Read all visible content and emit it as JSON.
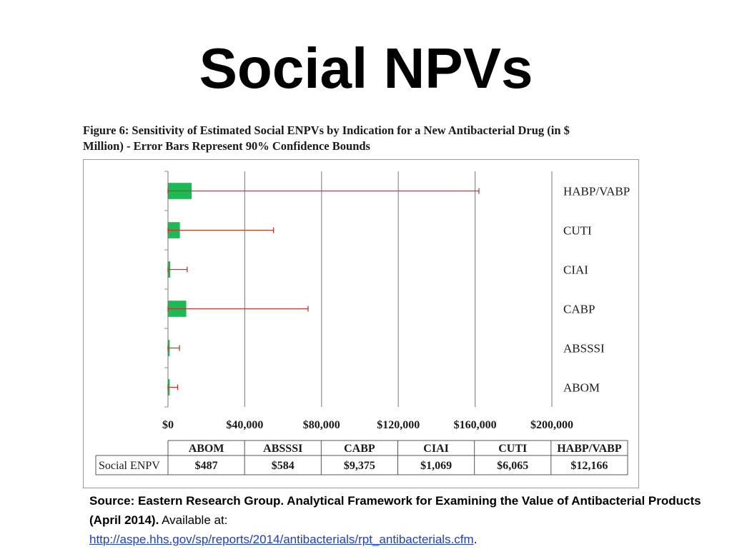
{
  "slide": {
    "title": "Social NPVs"
  },
  "figure": {
    "caption_line1": "Figure 6: Sensitivity of Estimated Social ENPVs by Indication for a New Antibacterial Drug (in $",
    "caption_line2": "Million) - Error Bars Represent 90% Confidence Bounds"
  },
  "source": {
    "bold_text": "Source: Eastern Research Group. Analytical Framework for Examining the Value of Antibacterial Products (April 2014).",
    "plain_text": " Available at:",
    "link_text": "http://aspe.hhs.gov/sp/reports/2014/antibacterials/rpt_antibacterials.cfm",
    "trailing": "."
  },
  "colors": {
    "bar": "#1db954",
    "bar_edge": "#159944",
    "error_bar": "#c0392b",
    "gridline": "#8c8c8c"
  },
  "chart_data": {
    "type": "bar",
    "orientation": "horizontal",
    "categories": [
      "HABP/VABP",
      "CUTI",
      "CIAI",
      "CABP",
      "ABSSSI",
      "ABOM"
    ],
    "values": [
      12166,
      6065,
      1069,
      9375,
      584,
      487
    ],
    "error_upper": [
      162000,
      55000,
      10000,
      73000,
      6000,
      5000
    ],
    "error_lower": [
      0,
      0,
      0,
      0,
      0,
      0
    ],
    "xlim": [
      0,
      200000
    ],
    "x_ticks": [
      "$0",
      "$40,000",
      "$80,000",
      "$120,000",
      "$160,000",
      "$200,000"
    ],
    "x_tick_values": [
      0,
      40000,
      80000,
      120000,
      160000,
      200000
    ],
    "grid": true,
    "table": {
      "row_label": "Social ENPV",
      "columns": [
        "ABOM",
        "ABSSSI",
        "CABP",
        "CIAI",
        "CUTI",
        "HABP/VABP"
      ],
      "values": [
        "$487",
        "$584",
        "$9,375",
        "$1,069",
        "$6,065",
        "$12,166"
      ]
    }
  }
}
